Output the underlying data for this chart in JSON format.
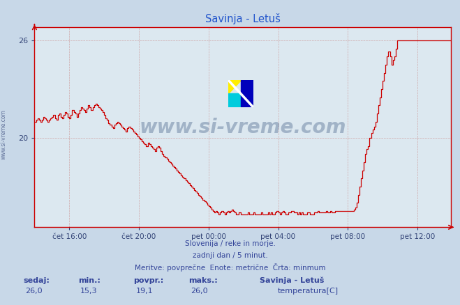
{
  "title": "Savinja - Letuš",
  "title_color": "#2255cc",
  "bg_color": "#c8d8e8",
  "plot_bg_color": "#dce8f0",
  "line_color": "#cc0000",
  "grid_color": "#cc9999",
  "axis_color": "#cc0000",
  "ylabel_ticks": [
    20,
    26
  ],
  "ylim_min": 14.5,
  "ylim_max": 26.8,
  "xlim_start": 0,
  "xlim_end": 287,
  "xtick_positions": [
    24,
    72,
    120,
    168,
    216,
    264
  ],
  "xtick_labels": [
    "čet 16:00",
    "čet 20:00",
    "pet 00:00",
    "pet 04:00",
    "pet 08:00",
    "pet 12:00"
  ],
  "subtitle_line1": "Slovenija / reke in morje.",
  "subtitle_line2": "zadnji dan / 5 minut.",
  "subtitle_line3": "Meritve: povprečne  Enote: metrične  Črta: minmum",
  "footer_labels": [
    "sedaj:",
    "min.:",
    "povpr.:",
    "maks.:"
  ],
  "footer_values": [
    "26,0",
    "15,3",
    "19,1",
    "26,0"
  ],
  "footer_series_name": "Savinja - Letuš",
  "footer_series_label": "temperatura[C]",
  "footer_series_color": "#cc0000",
  "watermark_text": "www.si-vreme.com",
  "watermark_color": "#1a3a6a",
  "watermark_alpha": 0.3,
  "logo_yellow": "#ffee00",
  "logo_cyan": "#00ccdd",
  "logo_blue": "#0000bb",
  "sivreme_label": "www.si-vreme.com",
  "temp_data": [
    21.0,
    21.1,
    21.2,
    21.1,
    21.0,
    21.1,
    21.3,
    21.2,
    21.1,
    21.0,
    21.1,
    21.2,
    21.3,
    21.4,
    21.2,
    21.1,
    21.4,
    21.5,
    21.3,
    21.2,
    21.4,
    21.6,
    21.5,
    21.3,
    21.2,
    21.4,
    21.7,
    21.6,
    21.5,
    21.3,
    21.5,
    21.7,
    21.9,
    21.8,
    21.7,
    21.6,
    21.8,
    22.0,
    21.9,
    21.7,
    21.9,
    22.0,
    22.1,
    22.0,
    21.9,
    21.8,
    21.7,
    21.6,
    21.4,
    21.2,
    21.1,
    20.9,
    20.8,
    20.7,
    20.6,
    20.8,
    20.9,
    21.0,
    20.9,
    20.8,
    20.7,
    20.6,
    20.5,
    20.4,
    20.6,
    20.7,
    20.6,
    20.5,
    20.4,
    20.3,
    20.2,
    20.1,
    20.0,
    19.9,
    19.8,
    19.7,
    19.6,
    19.5,
    19.7,
    19.6,
    19.5,
    19.4,
    19.3,
    19.2,
    19.4,
    19.5,
    19.4,
    19.2,
    19.0,
    18.9,
    18.8,
    18.7,
    18.6,
    18.5,
    18.4,
    18.3,
    18.2,
    18.1,
    18.0,
    17.9,
    17.8,
    17.7,
    17.6,
    17.5,
    17.4,
    17.3,
    17.2,
    17.1,
    17.0,
    16.9,
    16.8,
    16.7,
    16.6,
    16.5,
    16.4,
    16.3,
    16.2,
    16.1,
    16.0,
    15.9,
    15.8,
    15.7,
    15.6,
    15.5,
    15.4,
    15.5,
    15.4,
    15.3,
    15.4,
    15.5,
    15.4,
    15.3,
    15.4,
    15.5,
    15.4,
    15.5,
    15.6,
    15.5,
    15.4,
    15.3,
    15.3,
    15.4,
    15.3,
    15.3,
    15.3,
    15.3,
    15.3,
    15.4,
    15.3,
    15.3,
    15.3,
    15.4,
    15.3,
    15.3,
    15.3,
    15.3,
    15.4,
    15.3,
    15.3,
    15.3,
    15.3,
    15.4,
    15.3,
    15.4,
    15.3,
    15.3,
    15.4,
    15.5,
    15.4,
    15.3,
    15.4,
    15.5,
    15.4,
    15.3,
    15.3,
    15.4,
    15.4,
    15.5,
    15.5,
    15.4,
    15.4,
    15.3,
    15.4,
    15.3,
    15.4,
    15.3,
    15.3,
    15.3,
    15.4,
    15.4,
    15.3,
    15.3,
    15.3,
    15.4,
    15.4,
    15.5,
    15.4,
    15.4,
    15.4,
    15.4,
    15.4,
    15.5,
    15.4,
    15.4,
    15.5,
    15.4,
    15.4,
    15.5,
    15.5,
    15.5,
    15.5,
    15.5,
    15.5,
    15.5,
    15.5,
    15.5,
    15.5,
    15.5,
    15.5,
    15.5,
    15.6,
    15.7,
    16.0,
    16.5,
    17.0,
    17.5,
    18.0,
    18.5,
    19.0,
    19.3,
    19.5,
    20.0,
    20.3,
    20.5,
    20.7,
    21.0,
    21.5,
    22.0,
    22.5,
    23.0,
    23.5,
    24.0,
    24.5,
    25.0,
    25.3,
    25.0,
    24.5,
    24.8,
    25.0,
    25.5,
    26.0,
    26.0,
    26.0,
    26.0,
    26.0,
    26.0,
    26.0,
    26.0,
    26.0,
    26.0,
    26.0,
    26.0,
    26.0,
    26.0,
    26.0,
    26.0,
    26.0,
    26.0,
    26.0,
    26.0,
    26.0,
    26.0,
    26.0,
    26.0,
    26.0,
    26.0,
    26.0,
    26.0,
    26.0,
    26.0,
    26.0,
    26.0,
    26.0,
    26.0,
    26.0,
    26.0,
    26.0,
    26.0
  ]
}
